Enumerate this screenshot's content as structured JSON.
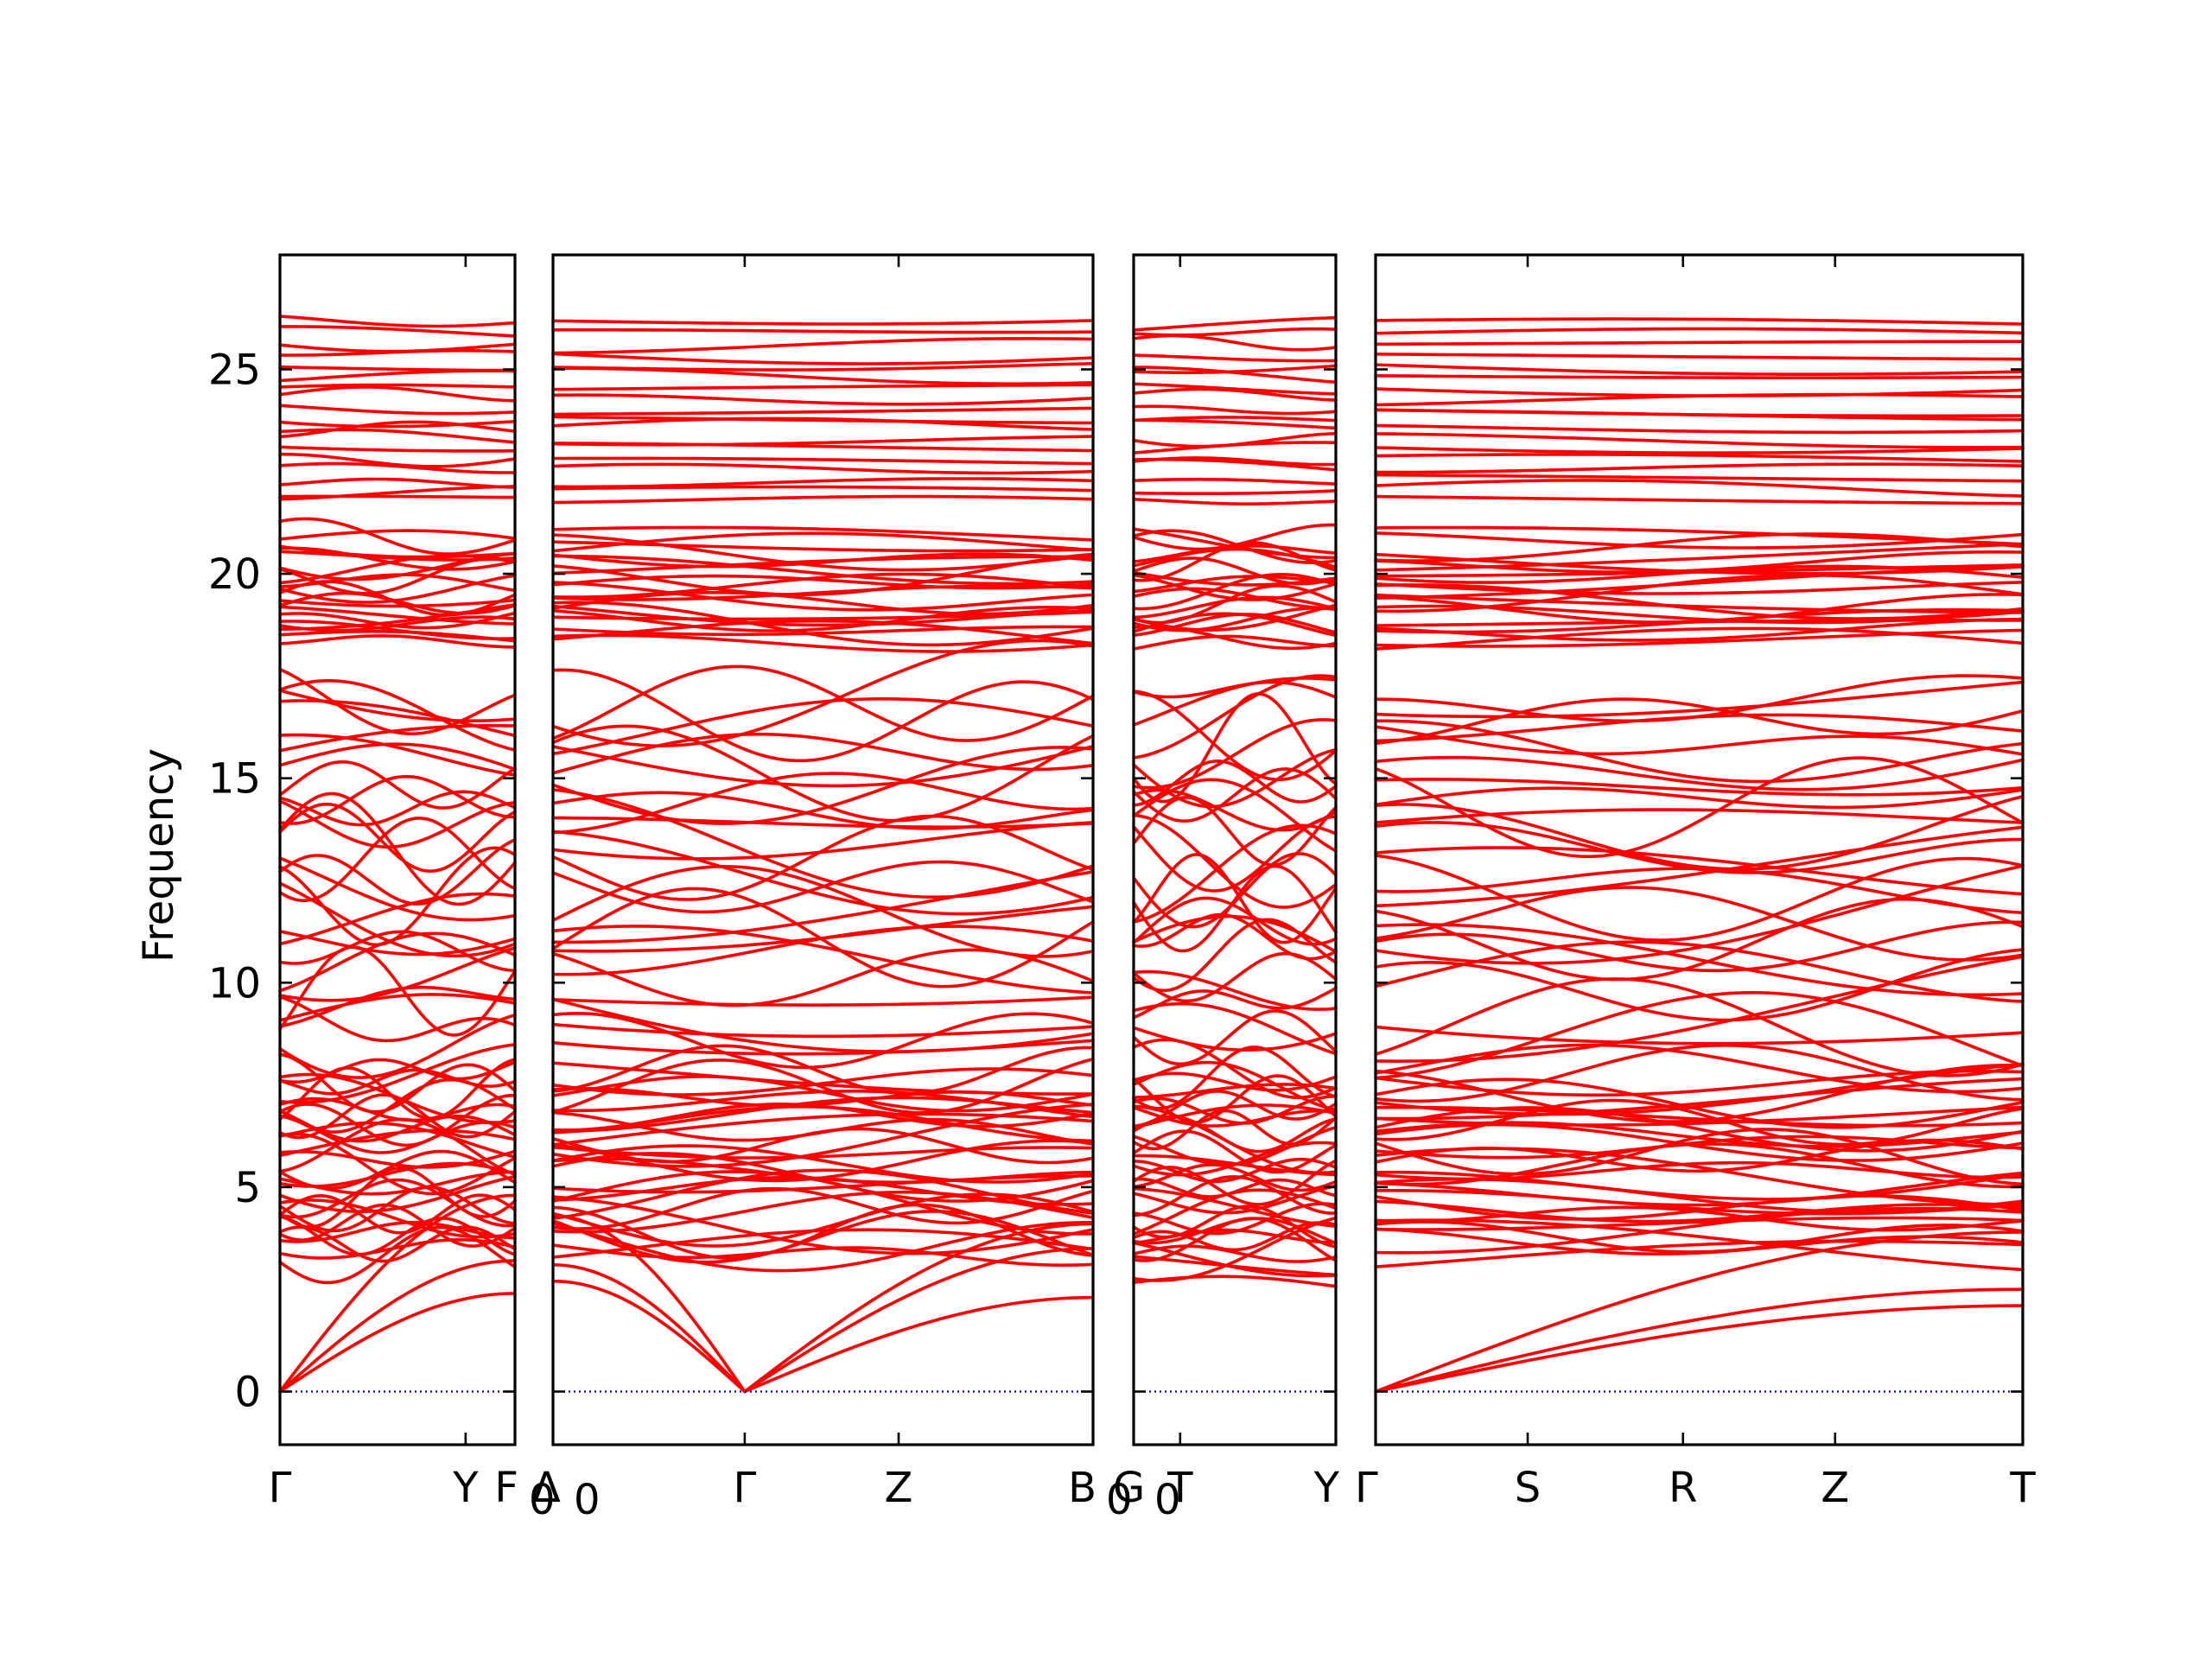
{
  "chart_data": {
    "type": "line",
    "ylabel": "Frequency",
    "ylim": [
      -1.3,
      27.8
    ],
    "yticks": [
      0,
      5,
      10,
      15,
      20,
      25
    ],
    "series_color": "#ff0000",
    "zero_line_color": "#0000cc",
    "grid": false,
    "legend": "none",
    "panels": [
      {
        "path": [
          "Γ",
          "Y",
          "F"
        ],
        "xlim": [
          0,
          1
        ],
        "ticks": [
          {
            "x": 0.0,
            "label": "Γ"
          },
          {
            "x": 0.79,
            "label": "Y"
          },
          {
            "x": 1.0,
            "label": "F"
          }
        ]
      },
      {
        "path": [
          "Δ",
          "Γ",
          "Z",
          "B"
        ],
        "xlim": [
          0,
          1
        ],
        "ticks": [
          {
            "x": 0.0,
            "label": "Δ"
          },
          {
            "x": 0.355,
            "label": "Γ"
          },
          {
            "x": 0.64,
            "label": "Z"
          },
          {
            "x": 1.0,
            "label": "B"
          }
        ]
      },
      {
        "path": [
          "G",
          "T",
          "Y"
        ],
        "xlim": [
          0,
          1
        ],
        "ticks": [
          {
            "x": 0.0,
            "label": "G"
          },
          {
            "x": 0.23,
            "label": "T"
          },
          {
            "x": 1.0,
            "label": "Y"
          }
        ]
      },
      {
        "path": [
          "Γ",
          "S",
          "R",
          "Z",
          "T"
        ],
        "xlim": [
          0,
          1
        ],
        "ticks": [
          {
            "x": 0.0,
            "label": "Γ"
          },
          {
            "x": 0.235,
            "label": "S"
          },
          {
            "x": 0.475,
            "label": "R"
          },
          {
            "x": 0.71,
            "label": "Z"
          },
          {
            "x": 1.0,
            "label": "T"
          }
        ]
      }
    ],
    "boundary_subscripts": [
      {
        "text": "0",
        "after_panel": 0
      },
      {
        "text": "0",
        "label": "Δ",
        "panel": 1
      },
      {
        "text": "0",
        "after_panel": 1
      },
      {
        "text": "0",
        "label": "G",
        "panel": 2
      }
    ],
    "band_counts": {
      "optical_flat_low": 32,
      "optical_mid": 28,
      "optical_high": 20,
      "top_flat": 18,
      "acoustic": 3
    }
  }
}
